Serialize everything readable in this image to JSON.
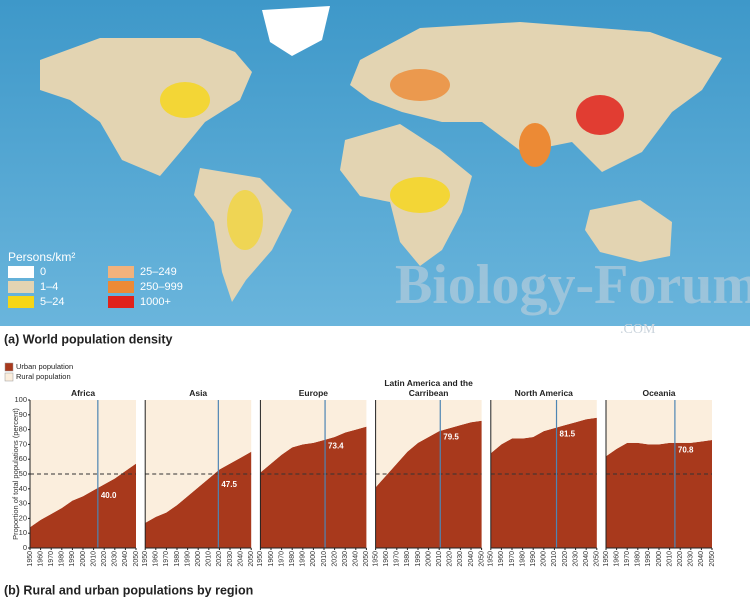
{
  "map": {
    "legend_title": "Persons/km²",
    "legend": [
      {
        "label": "0",
        "color": "#ffffff"
      },
      {
        "label": "1–4",
        "color": "#e3d4b2"
      },
      {
        "label": "5–24",
        "color": "#f6d616"
      },
      {
        "label": "25–249",
        "color": "#f2b27c"
      },
      {
        "label": "250–999",
        "color": "#ec8a35"
      },
      {
        "label": "1000+",
        "color": "#e0221b"
      }
    ],
    "caption": "(a) World population density"
  },
  "watermark": {
    "main": "Biology-Forums",
    "suffix": ".COM"
  },
  "figure": {
    "legend": [
      {
        "label": "Urban population",
        "color": "#a8391c"
      },
      {
        "label": "Rural population",
        "color": "#fbeedd"
      }
    ],
    "ylabel": "Proportion of total populations (percent)",
    "caption": "(b) Rural and urban populations by region"
  },
  "chart_data": [
    {
      "type": "area",
      "title": "Africa",
      "x": [
        1950,
        1960,
        1970,
        1980,
        1990,
        2000,
        2010,
        2020,
        2030,
        2040,
        2050
      ],
      "series": [
        {
          "name": "Urban population",
          "color": "#a8391c",
          "values": [
            14,
            19,
            23,
            27,
            32,
            35,
            39,
            43,
            47,
            52,
            57
          ]
        },
        {
          "name": "Rural population",
          "color": "#fbeedd",
          "values": [
            86,
            81,
            77,
            73,
            68,
            65,
            61,
            57,
            53,
            48,
            43
          ]
        }
      ],
      "xlim": [
        1950,
        2050
      ],
      "xticks": [
        1950,
        1960,
        1970,
        1980,
        1990,
        2000,
        2010,
        2020,
        2030,
        2040,
        2050
      ],
      "ylim": [
        0,
        100
      ],
      "yticks": [
        0,
        10,
        20,
        30,
        40,
        50,
        60,
        70,
        80,
        90,
        100
      ],
      "refline": 50,
      "marker": {
        "x": 2014,
        "value": 40,
        "label": "40.0"
      }
    },
    {
      "type": "area",
      "title": "Asia",
      "x": [
        1950,
        1960,
        1970,
        1980,
        1990,
        2000,
        2010,
        2020,
        2030,
        2040,
        2050
      ],
      "series": [
        {
          "name": "Urban population",
          "color": "#a8391c",
          "values": [
            17,
            21,
            24,
            29,
            35,
            41,
            47,
            53,
            57,
            61,
            65
          ]
        },
        {
          "name": "Rural population",
          "color": "#fbeedd",
          "values": [
            83,
            79,
            76,
            71,
            65,
            59,
            53,
            47,
            43,
            39,
            35
          ]
        }
      ],
      "xlim": [
        1950,
        2050
      ],
      "xticks": [
        1950,
        1960,
        1970,
        1980,
        1990,
        2000,
        2010,
        2020,
        2030,
        2040,
        2050
      ],
      "ylim": [
        0,
        100
      ],
      "refline": 50,
      "marker": {
        "x": 2019,
        "value": 47.5,
        "label": "47.5"
      }
    },
    {
      "type": "area",
      "title": "Europe",
      "x": [
        1950,
        1960,
        1970,
        1980,
        1990,
        2000,
        2010,
        2020,
        2030,
        2040,
        2050
      ],
      "series": [
        {
          "name": "Urban population",
          "color": "#a8391c",
          "values": [
            51,
            57,
            63,
            68,
            70,
            71,
            73,
            75,
            78,
            80,
            82
          ]
        },
        {
          "name": "Rural population",
          "color": "#fbeedd",
          "values": [
            49,
            43,
            37,
            32,
            30,
            29,
            27,
            25,
            22,
            20,
            18
          ]
        }
      ],
      "xlim": [
        1950,
        2050
      ],
      "xticks": [
        1950,
        1960,
        1970,
        1980,
        1990,
        2000,
        2010,
        2020,
        2030,
        2040,
        2050
      ],
      "ylim": [
        0,
        100
      ],
      "refline": 50,
      "marker": {
        "x": 2011,
        "value": 73.4,
        "label": "73.4"
      }
    },
    {
      "type": "area",
      "title": "Latin America and the Carribean",
      "x": [
        1950,
        1960,
        1970,
        1980,
        1990,
        2000,
        2010,
        2020,
        2030,
        2040,
        2050
      ],
      "series": [
        {
          "name": "Urban population",
          "color": "#a8391c",
          "values": [
            41,
            49,
            57,
            65,
            71,
            75,
            79,
            81,
            83,
            85,
            86
          ]
        },
        {
          "name": "Rural population",
          "color": "#fbeedd",
          "values": [
            59,
            51,
            43,
            35,
            29,
            25,
            21,
            19,
            17,
            15,
            14
          ]
        }
      ],
      "xlim": [
        1950,
        2050
      ],
      "xticks": [
        1950,
        1960,
        1970,
        1980,
        1990,
        2000,
        2010,
        2020,
        2030,
        2040,
        2050
      ],
      "ylim": [
        0,
        100
      ],
      "refline": 50,
      "marker": {
        "x": 2011,
        "value": 79.5,
        "label": "79.5"
      }
    },
    {
      "type": "area",
      "title": "North America",
      "x": [
        1950,
        1960,
        1970,
        1980,
        1990,
        2000,
        2010,
        2020,
        2030,
        2040,
        2050
      ],
      "series": [
        {
          "name": "Urban population",
          "color": "#a8391c",
          "values": [
            64,
            70,
            74,
            74,
            75,
            79,
            81,
            83,
            85,
            87,
            88
          ]
        },
        {
          "name": "Rural population",
          "color": "#fbeedd",
          "values": [
            36,
            30,
            26,
            26,
            25,
            21,
            19,
            17,
            15,
            13,
            12
          ]
        }
      ],
      "xlim": [
        1950,
        2050
      ],
      "xticks": [
        1950,
        1960,
        1970,
        1980,
        1990,
        2000,
        2010,
        2020,
        2030,
        2040,
        2050
      ],
      "ylim": [
        0,
        100
      ],
      "refline": 50,
      "marker": {
        "x": 2012,
        "value": 81.5,
        "label": "81.5"
      }
    },
    {
      "type": "area",
      "title": "Oceania",
      "x": [
        1950,
        1960,
        1970,
        1980,
        1990,
        2000,
        2010,
        2020,
        2030,
        2040,
        2050
      ],
      "series": [
        {
          "name": "Urban population",
          "color": "#a8391c",
          "values": [
            62,
            67,
            71,
            71,
            70,
            70,
            71,
            71,
            71,
            72,
            73
          ]
        },
        {
          "name": "Rural population",
          "color": "#fbeedd",
          "values": [
            38,
            33,
            29,
            29,
            30,
            30,
            29,
            29,
            29,
            28,
            27
          ]
        }
      ],
      "xlim": [
        1950,
        2050
      ],
      "xticks": [
        1950,
        1960,
        1970,
        1980,
        1990,
        2000,
        2010,
        2020,
        2030,
        2040,
        2050
      ],
      "ylim": [
        0,
        100
      ],
      "refline": 50,
      "marker": {
        "x": 2015,
        "value": 70.8,
        "label": "70.8"
      }
    }
  ]
}
